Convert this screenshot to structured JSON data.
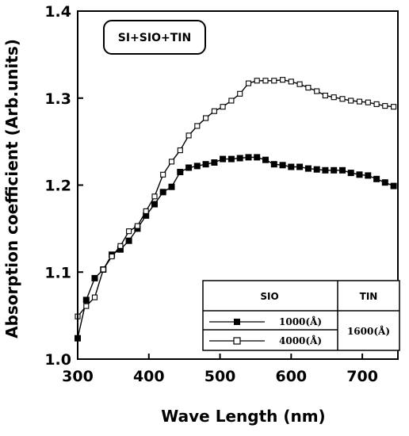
{
  "chart_data": {
    "type": "line",
    "title": "",
    "annotation": "SI+SIO+TIN",
    "xlabel": "Wave Length (nm)",
    "ylabel": "Absorption coefficient (Arb.units)",
    "xlim": [
      300,
      750
    ],
    "ylim": [
      1.0,
      1.4
    ],
    "x_ticks": [
      "300",
      "400",
      "500",
      "600",
      "700"
    ],
    "y_ticks": [
      "1.0",
      "1.1",
      "1.2",
      "1.3",
      "1.4"
    ],
    "grid": false,
    "legend_position": "bottom-right",
    "legend": {
      "header_sio": "SIO",
      "header_tin": "TIN",
      "tin_value": "1600(Å)"
    },
    "series": [
      {
        "name": "1000(Å)",
        "marker": "filled-square",
        "x": [
          300,
          312,
          324,
          336,
          348,
          360,
          372,
          384,
          396,
          408,
          420,
          432,
          444,
          456,
          468,
          480,
          492,
          504,
          516,
          528,
          540,
          552,
          564,
          576,
          588,
          600,
          612,
          624,
          636,
          648,
          660,
          672,
          684,
          696,
          708,
          720,
          732,
          744
        ],
        "values": [
          1.024,
          1.068,
          1.093,
          1.103,
          1.12,
          1.126,
          1.136,
          1.15,
          1.165,
          1.178,
          1.192,
          1.198,
          1.215,
          1.22,
          1.222,
          1.224,
          1.226,
          1.23,
          1.23,
          1.231,
          1.232,
          1.232,
          1.229,
          1.224,
          1.223,
          1.221,
          1.221,
          1.219,
          1.218,
          1.217,
          1.217,
          1.217,
          1.214,
          1.212,
          1.211,
          1.207,
          1.203,
          1.199
        ]
      },
      {
        "name": "4000(Å)",
        "marker": "open-square",
        "x": [
          300,
          312,
          324,
          336,
          348,
          360,
          372,
          384,
          396,
          408,
          420,
          432,
          444,
          456,
          468,
          480,
          492,
          504,
          516,
          528,
          540,
          552,
          564,
          576,
          588,
          600,
          612,
          624,
          636,
          648,
          660,
          672,
          684,
          696,
          708,
          720,
          732,
          744
        ],
        "values": [
          1.049,
          1.061,
          1.071,
          1.103,
          1.118,
          1.13,
          1.147,
          1.153,
          1.17,
          1.187,
          1.212,
          1.227,
          1.24,
          1.257,
          1.268,
          1.277,
          1.285,
          1.29,
          1.297,
          1.305,
          1.317,
          1.32,
          1.32,
          1.32,
          1.321,
          1.319,
          1.316,
          1.312,
          1.308,
          1.303,
          1.301,
          1.299,
          1.297,
          1.296,
          1.295,
          1.293,
          1.291,
          1.29
        ]
      }
    ]
  }
}
